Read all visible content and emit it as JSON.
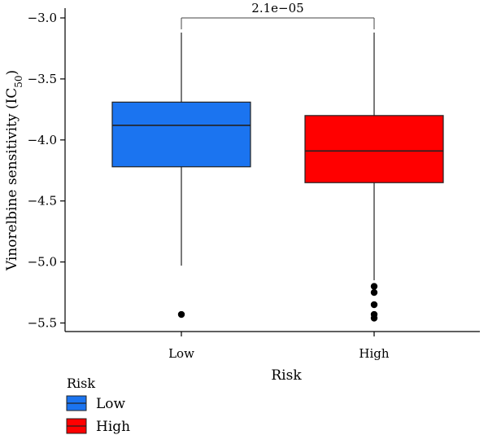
{
  "chart_data": {
    "type": "box",
    "xlabel": "Risk",
    "ylabel_main": "Vinorelbine sensitivity (IC",
    "ylabel_sub": "50",
    "ylabel_close": ")",
    "ylim": [
      -5.6,
      -2.95
    ],
    "yticks": [
      -3.0,
      -3.5,
      -4.0,
      -4.5,
      -5.0,
      -5.5
    ],
    "ytick_labels": [
      "−3.0",
      "−3.5",
      "−4.0",
      "−4.5",
      "−5.0",
      "−5.5"
    ],
    "categories": [
      "Low",
      "High"
    ],
    "boxes": [
      {
        "name": "Low",
        "color": "#1b74f0",
        "q1": -4.22,
        "median": -3.88,
        "q3": -3.69,
        "whisker_low": -5.03,
        "whisker_high": -3.12,
        "outliers": [
          -5.43
        ]
      },
      {
        "name": "High",
        "color": "#ff0000",
        "q1": -4.35,
        "median": -4.09,
        "q3": -3.8,
        "whisker_low": -5.15,
        "whisker_high": -3.12,
        "outliers": [
          -5.2,
          -5.25,
          -5.35,
          -5.43,
          -5.46
        ]
      }
    ],
    "comparison": {
      "label": "2.1e−05",
      "y": -2.98
    },
    "legend": {
      "title": "Risk",
      "entries": [
        {
          "label": "Low",
          "color": "#1b74f0"
        },
        {
          "label": "High",
          "color": "#ff0000"
        }
      ],
      "position": "bottom-left"
    }
  }
}
